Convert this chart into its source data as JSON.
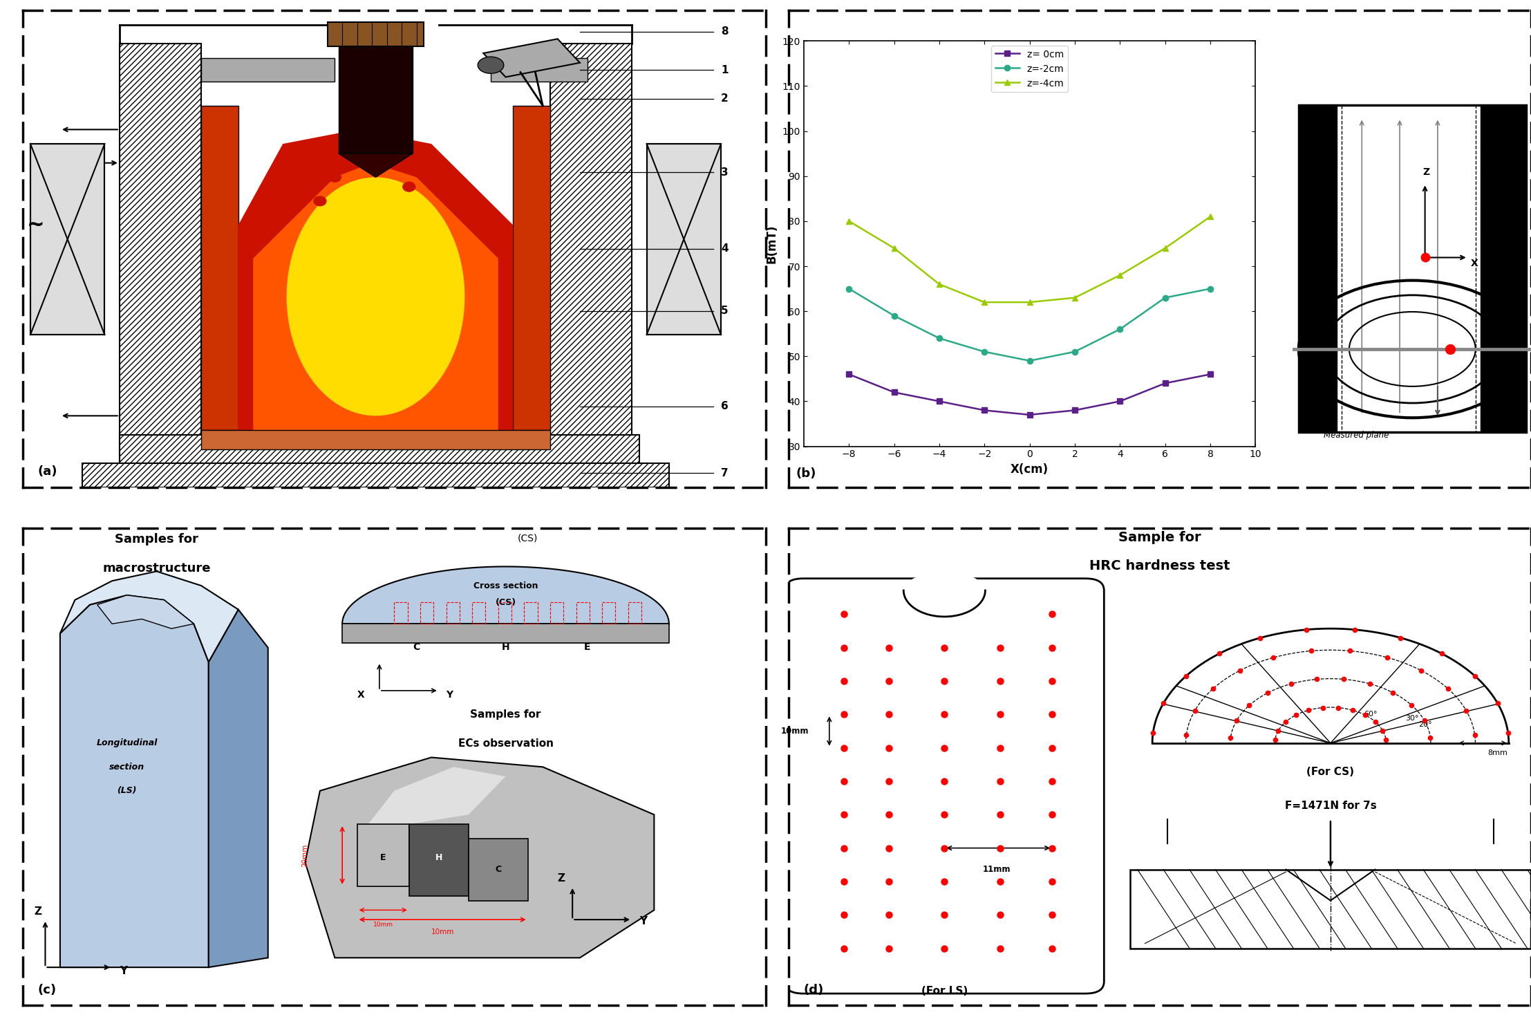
{
  "fig_width": 22.15,
  "fig_height": 14.84,
  "background": "#ffffff",
  "plot_b": {
    "x_z0": [
      -8,
      -6,
      -4,
      -2,
      0,
      2,
      4,
      6,
      8
    ],
    "y_z0": [
      46,
      42,
      40,
      38,
      37,
      38,
      40,
      44,
      46
    ],
    "x_z2": [
      -8,
      -6,
      -4,
      -2,
      0,
      2,
      4,
      6,
      8
    ],
    "y_z2": [
      65,
      59,
      54,
      51,
      49,
      51,
      56,
      63,
      65
    ],
    "x_z4": [
      -8,
      -6,
      -4,
      -2,
      0,
      2,
      4,
      6,
      8
    ],
    "y_z4": [
      80,
      74,
      66,
      62,
      62,
      63,
      68,
      74,
      81
    ],
    "color_z0": "#5b1f8a",
    "color_z2": "#2aaa88",
    "color_z4": "#99cc00",
    "xlabel": "X(cm)",
    "ylabel": "B(mT)",
    "xlim": [
      -10,
      10
    ],
    "ylim": [
      30,
      120
    ],
    "yticks": [
      30,
      40,
      50,
      60,
      70,
      80,
      90,
      100,
      110,
      120
    ],
    "xticks": [
      -8,
      -6,
      -4,
      -2,
      0,
      2,
      4,
      6,
      8,
      10
    ],
    "legend_labels": [
      "z= 0cm",
      "z=-2cm",
      "z=-4cm"
    ]
  }
}
